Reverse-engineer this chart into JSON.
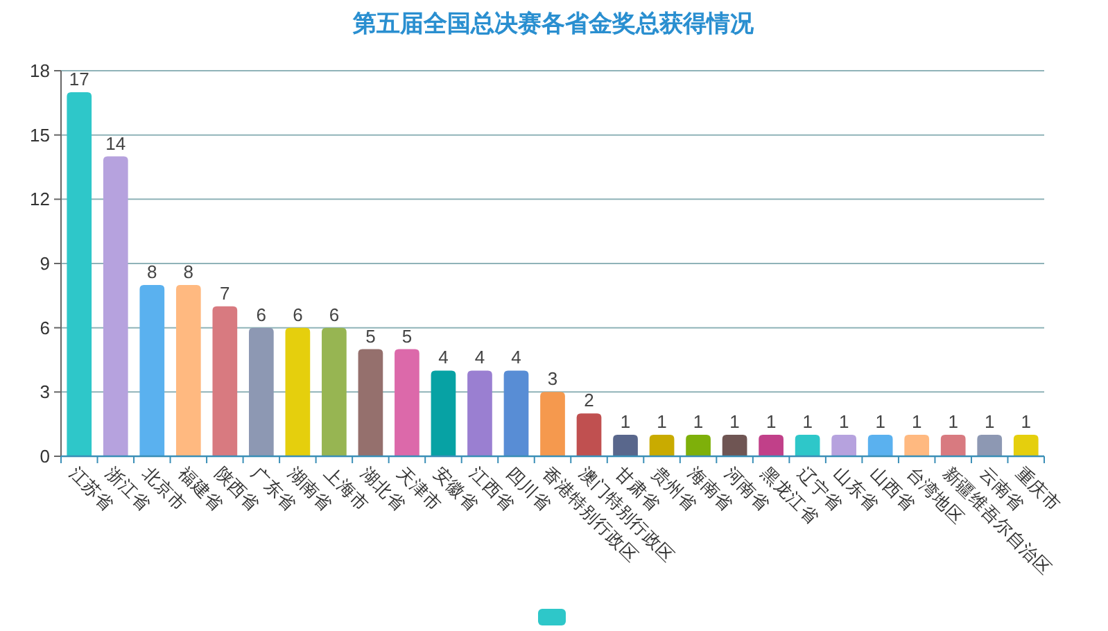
{
  "chart_data": {
    "type": "bar",
    "title": "第五届全国总决赛各省金奖总获得情况",
    "categories": [
      "江苏省",
      "浙江省",
      "北京市",
      "福建省",
      "陕西省",
      "广东省",
      "湖南省",
      "上海市",
      "湖北省",
      "天津市",
      "安徽省",
      "江西省",
      "四川省",
      "香港特别行政区",
      "澳门特别行政区",
      "甘肃省",
      "贵州省",
      "海南省",
      "河南省",
      "黑龙江省",
      "辽宁省",
      "山东省",
      "山西省",
      "台湾地区",
      "新疆维吾尔自治区",
      "云南省",
      "重庆市"
    ],
    "values": [
      17,
      14,
      8,
      8,
      7,
      6,
      6,
      6,
      5,
      5,
      4,
      4,
      4,
      3,
      2,
      1,
      1,
      1,
      1,
      1,
      1,
      1,
      1,
      1,
      1,
      1,
      1
    ],
    "colors": [
      "#2ec7c9",
      "#b6a2de",
      "#5ab1ef",
      "#ffb980",
      "#d87a80",
      "#8d98b3",
      "#e5cf0d",
      "#97b552",
      "#95706d",
      "#dc69aa",
      "#07a2a4",
      "#9a7fd1",
      "#588dd5",
      "#f5994e",
      "#c05050",
      "#59678c",
      "#c9ab00",
      "#7eb00a",
      "#6f5553",
      "#c14089",
      "#2ec7c9",
      "#b6a2de",
      "#5ab1ef",
      "#ffb980",
      "#d87a80",
      "#8d98b3",
      "#e5cf0d"
    ],
    "ylim": [
      0,
      18
    ],
    "yticks": [
      0,
      3,
      6,
      9,
      12,
      15,
      18
    ],
    "grid": "y",
    "data_labels": true
  }
}
